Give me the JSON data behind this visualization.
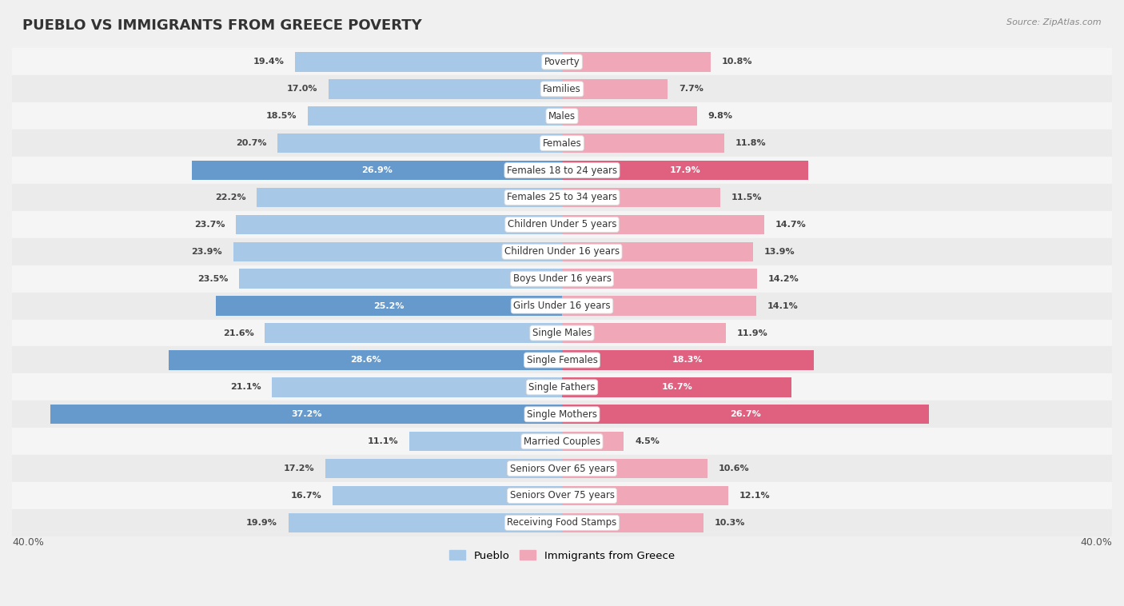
{
  "title": "PUEBLO VS IMMIGRANTS FROM GREECE POVERTY",
  "source": "Source: ZipAtlas.com",
  "categories": [
    "Poverty",
    "Families",
    "Males",
    "Females",
    "Females 18 to 24 years",
    "Females 25 to 34 years",
    "Children Under 5 years",
    "Children Under 16 years",
    "Boys Under 16 years",
    "Girls Under 16 years",
    "Single Males",
    "Single Females",
    "Single Fathers",
    "Single Mothers",
    "Married Couples",
    "Seniors Over 65 years",
    "Seniors Over 75 years",
    "Receiving Food Stamps"
  ],
  "pueblo_values": [
    19.4,
    17.0,
    18.5,
    20.7,
    26.9,
    22.2,
    23.7,
    23.9,
    23.5,
    25.2,
    21.6,
    28.6,
    21.1,
    37.2,
    11.1,
    17.2,
    16.7,
    19.9
  ],
  "greece_values": [
    10.8,
    7.7,
    9.8,
    11.8,
    17.9,
    11.5,
    14.7,
    13.9,
    14.2,
    14.1,
    11.9,
    18.3,
    16.7,
    26.7,
    4.5,
    10.6,
    12.1,
    10.3
  ],
  "pueblo_color_normal": "#a8c8e8",
  "pueblo_color_highlight": "#6699cc",
  "greece_color_normal": "#f0a8b8",
  "greece_color_highlight": "#e06080",
  "row_colors": [
    "#f5f5f5",
    "#ebebeb"
  ],
  "axis_limit": 40.0,
  "bar_height": 0.72,
  "legend_label_pueblo": "Pueblo",
  "legend_label_greece": "Immigrants from Greece",
  "pueblo_hi_threshold": 24.0,
  "greece_hi_threshold": 15.0,
  "title_fontsize": 13,
  "label_fontsize": 8.5,
  "value_fontsize": 8.0
}
